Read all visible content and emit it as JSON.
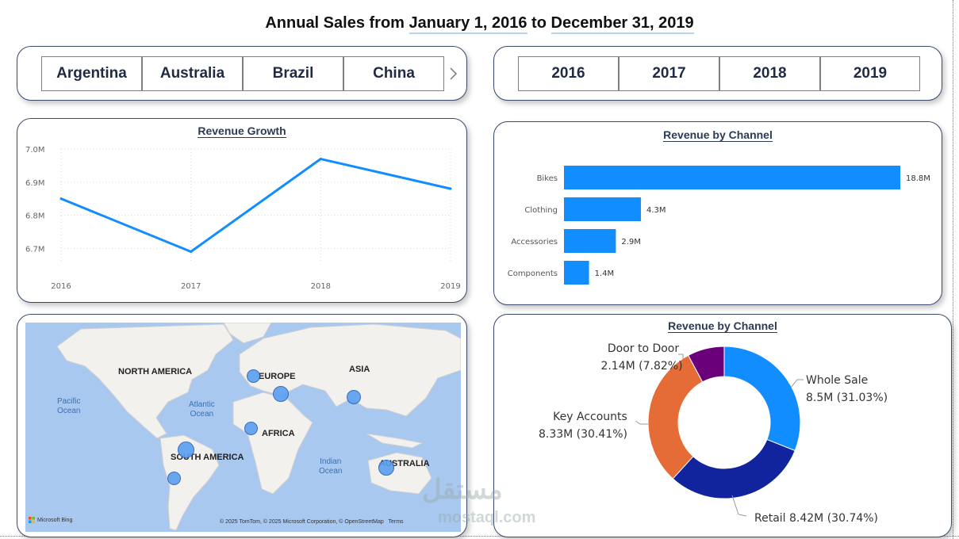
{
  "header": {
    "prefix": "Annual Sales from ",
    "start_date": "January 1, 2016",
    "connector": " to ",
    "end_date": "December 31, 2019"
  },
  "country_slicer": {
    "items": [
      "Argentina",
      "Australia",
      "Brazil",
      "China"
    ],
    "next_icon": "chevron-right-icon"
  },
  "year_slicer": {
    "items": [
      "2016",
      "2017",
      "2018",
      "2019"
    ]
  },
  "revenue_growth": {
    "title": "Revenue Growth",
    "y_ticks": [
      "7.0M",
      "6.9M",
      "6.8M",
      "6.7M"
    ]
  },
  "revenue_by_channel_bar": {
    "title": "Revenue by Channel"
  },
  "revenue_by_channel_donut": {
    "title": "Revenue by Channel",
    "labels": {
      "door_name": "Door to Door",
      "door_val": "2.14M (7.82%)",
      "whole_name": "Whole Sale",
      "whole_val": "8.5M (31.03%)",
      "key_name": "Key Accounts",
      "key_val": "8.33M (30.41%)",
      "retail": "Retail 8.42M (30.74%)"
    }
  },
  "map": {
    "regions": [
      "NORTH AMERICA",
      "EUROPE",
      "ASIA",
      "AFRICA",
      "SOUTH AMERICA",
      "AUSTRALIA"
    ],
    "oceans": {
      "pacific": "Pacific\nOcean",
      "atlantic": "Atlantic\nOcean",
      "indian": "Indian\nOcean"
    },
    "logo": "Microsoft Bing",
    "attribution": "© 2025 TomTom, © 2025 Microsoft Corporation, © OpenStreetMap   Terms"
  },
  "watermark": {
    "arabic": "مستقل",
    "latin": "mostaql.com"
  },
  "colors": {
    "line": "#118dff",
    "bar": "#118dff",
    "whole_sale": "#118dff",
    "retail": "#12239e",
    "key_accounts": "#e66c37",
    "door_to_door": "#6b007b"
  },
  "chart_data": [
    {
      "type": "line",
      "title": "Revenue Growth",
      "x": [
        "2016",
        "2017",
        "2018",
        "2019"
      ],
      "values": [
        6.85,
        6.69,
        6.97,
        6.88
      ],
      "ylim": [
        6.66,
        7.0
      ],
      "y_unit": "M",
      "grid": true
    },
    {
      "type": "bar",
      "orientation": "horizontal",
      "title": "Revenue by Channel",
      "categories": [
        "Bikes",
        "Clothing",
        "Accessories",
        "Components"
      ],
      "values": [
        18.8,
        4.3,
        2.9,
        1.4
      ],
      "value_labels": [
        "18.8M",
        "4.3M",
        "2.9M",
        "1.4M"
      ],
      "y_unit": "M"
    },
    {
      "type": "pie",
      "variant": "donut",
      "title": "Revenue by Channel",
      "categories": [
        "Whole Sale",
        "Retail",
        "Key Accounts",
        "Door to Door"
      ],
      "values": [
        8.5,
        8.42,
        8.33,
        2.14
      ],
      "percents": [
        31.03,
        30.74,
        30.41,
        7.82
      ]
    }
  ]
}
